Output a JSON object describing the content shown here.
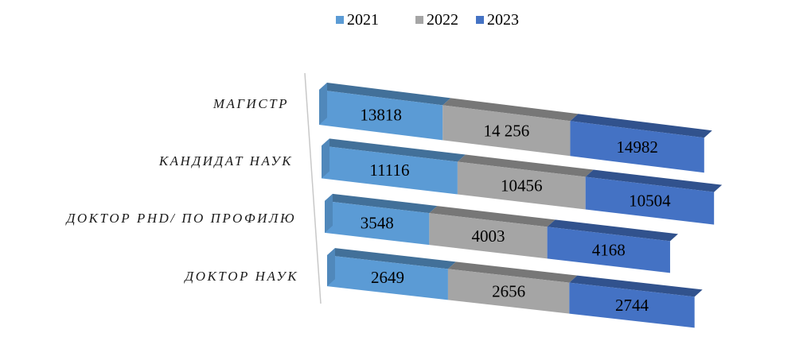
{
  "chart_data": {
    "type": "bar",
    "orientation": "horizontal",
    "stacked": true,
    "style": "3d",
    "title": "",
    "xlabel": "",
    "ylabel": "",
    "categories": [
      "МАГИСТР",
      "КАНДИДАТ НАУК",
      "ДОКТОР PHD/ ПО ПРОФИЛЮ",
      "ДОКТОР НАУК"
    ],
    "series": [
      {
        "name": "2021",
        "color": "#5B9BD5",
        "values": [
          13818,
          11116,
          3548,
          2649
        ],
        "labels": [
          "13818",
          "11116",
          "3548",
          "2649"
        ]
      },
      {
        "name": "2022",
        "color": "#A5A5A5",
        "values": [
          14256,
          10456,
          4003,
          2656
        ],
        "labels": [
          "14 256",
          "10456",
          "4003",
          "2656"
        ]
      },
      {
        "name": "2023",
        "color": "#4472C4",
        "values": [
          14982,
          10504,
          4168,
          2744
        ],
        "labels": [
          "14982",
          "10504",
          "4168",
          "2744"
        ]
      }
    ],
    "legend_position": "top",
    "grid": false
  }
}
